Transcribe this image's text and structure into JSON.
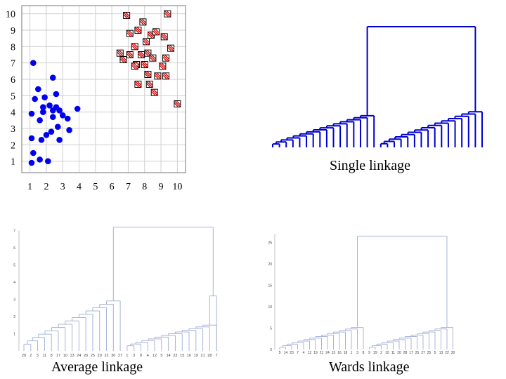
{
  "chart_data": [
    {
      "type": "scatter",
      "xlim": [
        0.5,
        10.5
      ],
      "ylim": [
        0.3,
        10.5
      ],
      "x_ticks": [
        "1",
        "2",
        "3",
        "4",
        "5",
        "6",
        "7",
        "8",
        "9",
        "10"
      ],
      "y_ticks": [
        "1",
        "2",
        "3",
        "4",
        "5",
        "6",
        "7",
        "8",
        "9",
        "10"
      ],
      "grid": true,
      "series": [
        {
          "marker": "circle",
          "color": "#0000ee",
          "points": [
            [
              1.1,
              0.9
            ],
            [
              1.2,
              1.5
            ],
            [
              1.1,
              2.4
            ],
            [
              1.1,
              3.9
            ],
            [
              1.3,
              4.8
            ],
            [
              1.5,
              5.4
            ],
            [
              1.2,
              7.0
            ],
            [
              1.6,
              3.5
            ],
            [
              1.7,
              2.3
            ],
            [
              1.8,
              4.0
            ],
            [
              1.8,
              4.3
            ],
            [
              1.9,
              4.9
            ],
            [
              1.6,
              1.1
            ],
            [
              2.1,
              1.0
            ],
            [
              2.0,
              2.6
            ],
            [
              2.3,
              2.8
            ],
            [
              2.4,
              3.7
            ],
            [
              2.4,
              4.1
            ],
            [
              2.2,
              4.4
            ],
            [
              2.4,
              6.1
            ],
            [
              2.6,
              5.1
            ],
            [
              2.7,
              3.1
            ],
            [
              2.8,
              4.1
            ],
            [
              2.6,
              4.3
            ],
            [
              2.8,
              2.3
            ],
            [
              3.0,
              3.8
            ],
            [
              3.3,
              3.6
            ],
            [
              3.4,
              2.9
            ],
            [
              3.9,
              4.2
            ]
          ]
        },
        {
          "marker": "hatched-square",
          "color": "#cc0000",
          "points": [
            [
              6.9,
              9.9
            ],
            [
              7.1,
              8.8
            ],
            [
              7.6,
              9.0
            ],
            [
              7.9,
              9.5
            ],
            [
              8.1,
              8.3
            ],
            [
              8.4,
              8.7
            ],
            [
              8.7,
              8.9
            ],
            [
              9.4,
              10.0
            ],
            [
              9.2,
              8.6
            ],
            [
              9.6,
              7.9
            ],
            [
              6.5,
              7.6
            ],
            [
              6.7,
              7.2
            ],
            [
              7.1,
              7.5
            ],
            [
              7.4,
              8.0
            ],
            [
              7.5,
              6.9
            ],
            [
              7.8,
              7.5
            ],
            [
              8.2,
              7.6
            ],
            [
              8.5,
              7.3
            ],
            [
              8.0,
              6.9
            ],
            [
              8.2,
              6.3
            ],
            [
              7.4,
              6.8
            ],
            [
              8.8,
              6.2
            ],
            [
              9.1,
              6.8
            ],
            [
              9.3,
              6.2
            ],
            [
              9.3,
              7.3
            ],
            [
              7.6,
              5.7
            ],
            [
              8.3,
              5.7
            ],
            [
              8.6,
              5.2
            ],
            [
              10.0,
              4.5
            ]
          ]
        }
      ]
    },
    {
      "type": "dendrogram",
      "caption": "Single linkage",
      "color": "#0000cc",
      "leaves": 32,
      "root": 8.6,
      "left_subtree_height": 2.3,
      "right_subtree_height": 2.6
    },
    {
      "type": "dendrogram",
      "caption": "Average linkage",
      "color": "#a8b4d8",
      "y_ticks": [
        "1",
        "2",
        "3",
        "4",
        "5",
        "6",
        "7"
      ],
      "leaf_labels": [
        "20",
        "2",
        "5",
        "11",
        "8",
        "17",
        "10",
        "13",
        "24",
        "26",
        "25",
        "20",
        "22",
        "30",
        "27",
        "1",
        "3",
        "8",
        "4",
        "12",
        "5",
        "14",
        "23",
        "15",
        "16",
        "19",
        "21",
        "28",
        "7"
      ]
    },
    {
      "type": "dendrogram",
      "caption": "Wards linkage",
      "color": "#a8b4d8",
      "y_ticks": [
        "0",
        "5",
        "10",
        "15",
        "20",
        "25"
      ],
      "leaf_labels": [
        "5",
        "14",
        "23",
        "7",
        "4",
        "12",
        "19",
        "21",
        "24",
        "15",
        "16",
        "18",
        "1",
        "3",
        "8",
        "9",
        "29",
        "2",
        "10",
        "11",
        "20",
        "28",
        "17",
        "25",
        "27",
        "25",
        "5",
        "13",
        "22",
        "30"
      ]
    }
  ]
}
